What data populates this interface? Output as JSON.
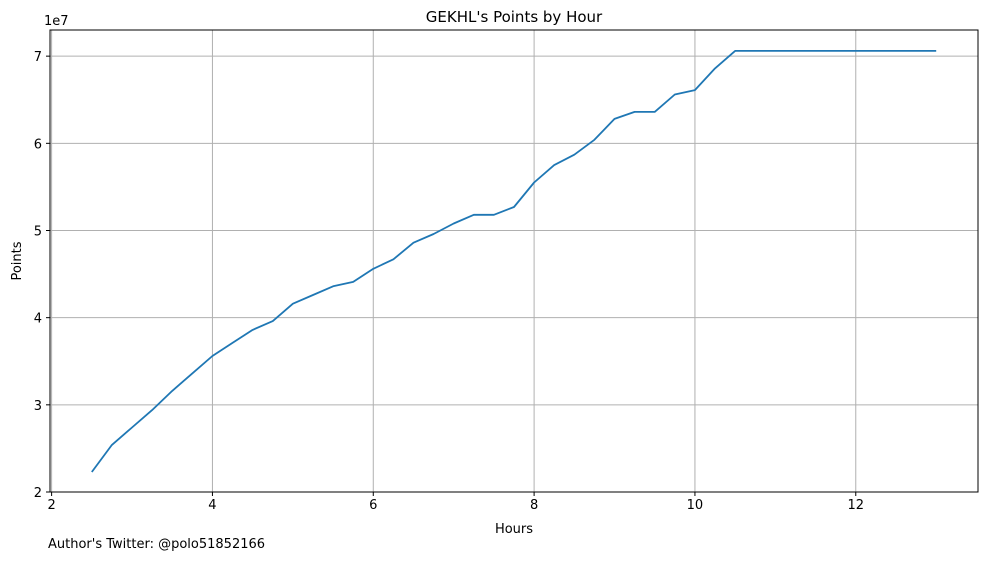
{
  "chart_data": {
    "type": "line",
    "title": "GEKHL's Points by Hour",
    "xlabel": "Hours",
    "ylabel": "Points",
    "y_offset_label": "1e7",
    "xlim": [
      1.98,
      13.52
    ],
    "ylim": [
      2.0,
      7.3
    ],
    "x_ticks": [
      2,
      4,
      6,
      8,
      10,
      12
    ],
    "y_ticks": [
      2,
      3,
      4,
      5,
      6,
      7
    ],
    "grid": true,
    "line_color": "#1f77b4",
    "series": [
      {
        "x": [
          2.5,
          2.75,
          3.0,
          3.25,
          3.5,
          3.75,
          4.0,
          4.25,
          4.5,
          4.75,
          5.0,
          5.25,
          5.5,
          5.75,
          6.0,
          6.25,
          6.5,
          6.75,
          7.0,
          7.25,
          7.5,
          7.75,
          8.0,
          8.25,
          8.5,
          8.75,
          9.0,
          9.25,
          9.5,
          9.75,
          10.0,
          10.25,
          10.5,
          10.75,
          11.0,
          11.25,
          11.5,
          11.75,
          12.0,
          12.25,
          12.5,
          12.75,
          13.0
        ],
        "y": [
          2.23,
          2.54,
          2.74,
          2.94,
          3.16,
          3.36,
          3.56,
          3.71,
          3.86,
          3.96,
          4.16,
          4.26,
          4.36,
          4.41,
          4.56,
          4.67,
          4.86,
          4.96,
          5.08,
          5.18,
          5.18,
          5.27,
          5.55,
          5.75,
          5.87,
          6.04,
          6.28,
          6.36,
          6.36,
          6.56,
          6.61,
          6.86,
          7.06,
          7.06,
          7.06,
          7.06,
          7.06,
          7.06,
          7.06,
          7.06,
          7.06,
          7.06,
          7.06
        ]
      }
    ]
  },
  "credit": "Author's Twitter: @polo51852166"
}
